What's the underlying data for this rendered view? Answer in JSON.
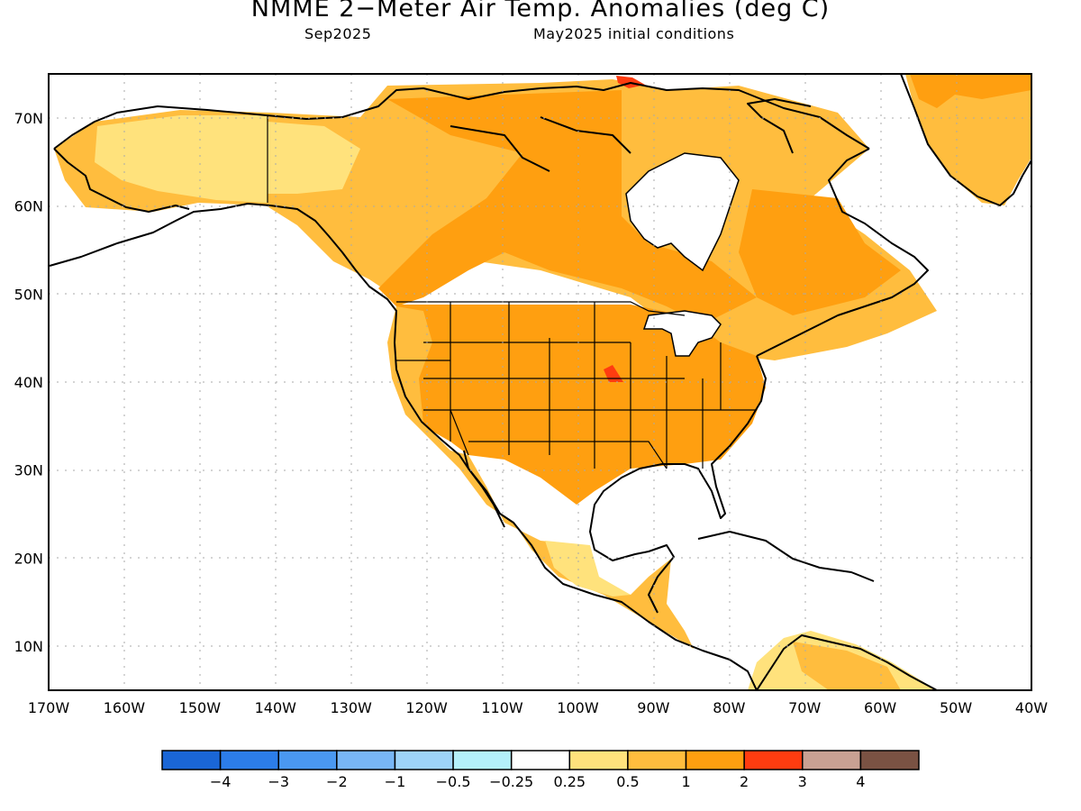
{
  "title": "NMME 2−Meter Air Temp. Anomalies (deg C)",
  "valid_month": "Sep2025",
  "initial_conditions": "May2025 initial conditions",
  "lat_labels": [
    "10N",
    "20N",
    "30N",
    "40N",
    "50N",
    "60N",
    "70N"
  ],
  "lon_labels": [
    "170W",
    "160W",
    "150W",
    "140W",
    "130W",
    "120W",
    "110W",
    "100W",
    "90W",
    "80W",
    "70W",
    "60W",
    "50W",
    "40W"
  ],
  "colorbar": {
    "colors": [
      "#1a66d6",
      "#2c7de9",
      "#4a98f0",
      "#78b6f6",
      "#9ed3f8",
      "#b4f0fa",
      "#ffffff",
      "#ffe27c",
      "#ffbd3e",
      "#ff9f10",
      "#ff3c10",
      "#c9a193",
      "#7a5243"
    ],
    "tick_labels": [
      "−4",
      "−3",
      "−2",
      "−1",
      "−0.5",
      "−0.25",
      "0.25",
      "0.5",
      "1",
      "2",
      "3",
      "4"
    ]
  },
  "map": {
    "lon_range": [
      -170,
      -40
    ],
    "lat_range": [
      5,
      75
    ],
    "field_colors": {
      "weak": "#ffe27c",
      "moderate": "#ffbd3e",
      "strong": "#ff9f10",
      "extreme": "#ff3c10"
    }
  }
}
